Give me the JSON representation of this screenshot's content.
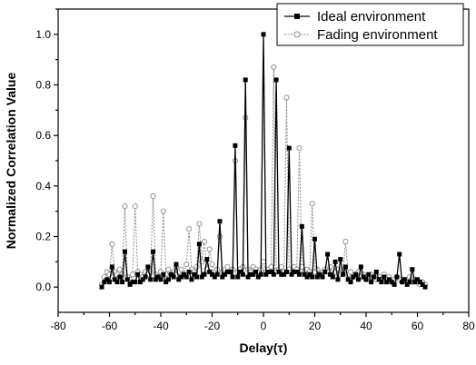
{
  "chart_data": {
    "type": "line",
    "xlabel": "Delay(τ)",
    "ylabel": "Normalized Correlation Value",
    "xlim": [
      -80,
      80
    ],
    "ylim": [
      -0.1,
      1.1
    ],
    "x_ticks": [
      -80,
      -60,
      -40,
      -20,
      0,
      20,
      40,
      60,
      80
    ],
    "y_ticks": [
      0.0,
      0.2,
      0.4,
      0.6,
      0.8,
      1.0
    ],
    "x_tick_labels": [
      "-80",
      "-60",
      "-40",
      "-20",
      "0",
      "20",
      "40",
      "60",
      "80"
    ],
    "y_tick_labels": [
      "0.0",
      "0.2",
      "0.4",
      "0.6",
      "0.8",
      "1.0"
    ],
    "grid": false,
    "legend_position": "top-right",
    "x": [
      -63,
      -62,
      -61,
      -60,
      -59,
      -58,
      -57,
      -56,
      -55,
      -54,
      -53,
      -52,
      -51,
      -50,
      -49,
      -48,
      -47,
      -46,
      -45,
      -44,
      -43,
      -42,
      -41,
      -40,
      -39,
      -38,
      -37,
      -36,
      -35,
      -34,
      -33,
      -32,
      -31,
      -30,
      -29,
      -28,
      -27,
      -26,
      -25,
      -24,
      -23,
      -22,
      -21,
      -20,
      -19,
      -18,
      -17,
      -16,
      -15,
      -14,
      -13,
      -12,
      -11,
      -10,
      -9,
      -8,
      -7,
      -6,
      -5,
      -4,
      -3,
      -2,
      -1,
      0,
      1,
      2,
      3,
      4,
      5,
      6,
      7,
      8,
      9,
      10,
      11,
      12,
      13,
      14,
      15,
      16,
      17,
      18,
      19,
      20,
      21,
      22,
      23,
      24,
      25,
      26,
      27,
      28,
      29,
      30,
      31,
      32,
      33,
      34,
      35,
      36,
      37,
      38,
      39,
      40,
      41,
      42,
      43,
      44,
      45,
      46,
      47,
      48,
      49,
      50,
      51,
      52,
      53,
      54,
      55,
      56,
      57,
      58,
      59,
      60,
      61,
      62,
      63
    ],
    "series": [
      {
        "name": "Ideal environment",
        "color": "#000000",
        "marker": "filled-square",
        "values": [
          0.0,
          0.02,
          0.03,
          0.02,
          0.08,
          0.03,
          0.02,
          0.04,
          0.02,
          0.14,
          0.03,
          0.01,
          0.02,
          0.02,
          0.05,
          0.02,
          0.03,
          0.04,
          0.08,
          0.03,
          0.14,
          0.03,
          0.04,
          0.03,
          0.05,
          0.02,
          0.03,
          0.05,
          0.04,
          0.09,
          0.03,
          0.04,
          0.05,
          0.04,
          0.06,
          0.03,
          0.05,
          0.04,
          0.17,
          0.04,
          0.05,
          0.11,
          0.06,
          0.05,
          0.04,
          0.05,
          0.26,
          0.04,
          0.05,
          0.06,
          0.06,
          0.04,
          0.56,
          0.04,
          0.06,
          0.05,
          0.82,
          0.04,
          0.05,
          0.05,
          0.06,
          0.04,
          0.05,
          1.0,
          0.05,
          0.06,
          0.06,
          0.05,
          0.82,
          0.06,
          0.05,
          0.05,
          0.06,
          0.55,
          0.05,
          0.06,
          0.06,
          0.05,
          0.24,
          0.05,
          0.04,
          0.05,
          0.04,
          0.19,
          0.04,
          0.05,
          0.04,
          0.06,
          0.13,
          0.05,
          0.04,
          0.1,
          0.03,
          0.11,
          0.05,
          0.08,
          0.03,
          0.02,
          0.04,
          0.05,
          0.03,
          0.08,
          0.04,
          0.03,
          0.05,
          0.02,
          0.04,
          0.06,
          0.03,
          0.02,
          0.04,
          0.02,
          0.03,
          0.02,
          0.01,
          0.04,
          0.13,
          0.02,
          0.03,
          0.01,
          0.02,
          0.07,
          0.02,
          0.03,
          0.02,
          0.01,
          0.0
        ]
      },
      {
        "name": "Fading environment",
        "color": "#8a8a8a",
        "marker": "open-circle",
        "values": [
          0.01,
          0.04,
          0.06,
          0.05,
          0.17,
          0.06,
          0.05,
          0.07,
          0.05,
          0.32,
          0.04,
          0.03,
          0.05,
          0.32,
          0.06,
          0.05,
          0.04,
          0.06,
          0.05,
          0.06,
          0.36,
          0.05,
          0.04,
          0.06,
          0.3,
          0.05,
          0.07,
          0.05,
          0.06,
          0.08,
          0.06,
          0.07,
          0.05,
          0.09,
          0.23,
          0.07,
          0.06,
          0.08,
          0.25,
          0.1,
          0.18,
          0.07,
          0.15,
          0.09,
          0.06,
          0.07,
          0.2,
          0.06,
          0.07,
          0.08,
          0.06,
          0.07,
          0.5,
          0.06,
          0.07,
          0.08,
          0.67,
          0.07,
          0.06,
          0.08,
          0.07,
          0.06,
          0.07,
          0.1,
          0.06,
          0.07,
          0.08,
          0.87,
          0.06,
          0.07,
          0.08,
          0.06,
          0.75,
          0.07,
          0.06,
          0.08,
          0.07,
          0.55,
          0.08,
          0.06,
          0.07,
          0.06,
          0.33,
          0.06,
          0.07,
          0.05,
          0.06,
          0.07,
          0.06,
          0.08,
          0.05,
          0.06,
          0.07,
          0.05,
          0.06,
          0.18,
          0.05,
          0.06,
          0.04,
          0.05,
          0.06,
          0.04,
          0.05,
          0.03,
          0.04,
          0.05,
          0.04,
          0.03,
          0.04,
          0.03,
          0.05,
          0.03,
          0.04,
          0.02,
          0.03,
          0.04,
          0.03,
          0.02,
          0.03,
          0.02,
          0.04,
          0.02,
          0.03,
          0.02,
          0.01,
          0.02,
          0.01
        ]
      }
    ]
  }
}
